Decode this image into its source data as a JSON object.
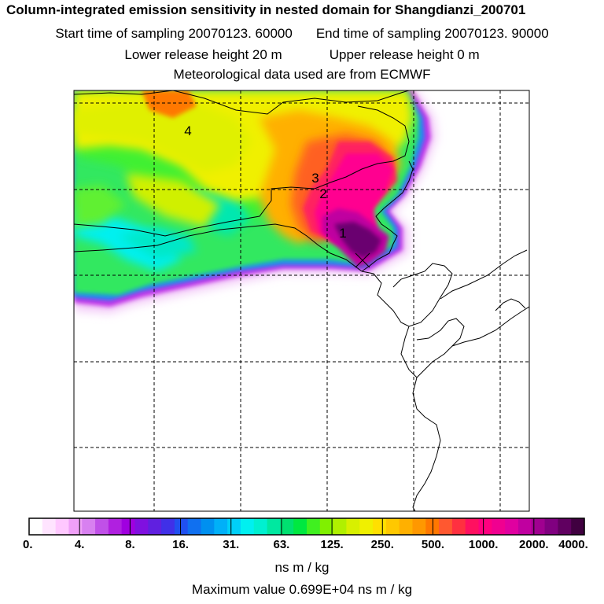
{
  "header": {
    "title": "Column-integrated emission sensitivity in nested domain for Shangdianzi_200701",
    "start_label": "Start time of sampling 20070123. 60000",
    "end_label": "End time of sampling 20070123. 90000",
    "lower_label": "Lower release height   20 m",
    "upper_label": "Upper release height    0 m",
    "met_label": "Meteorological data used are from ECMWF"
  },
  "map": {
    "markers": [
      "1",
      "2",
      "3",
      "4"
    ]
  },
  "colorbar": {
    "ticks": [
      "0.",
      "4.",
      "8.",
      "16.",
      "31.",
      "63.",
      "125.",
      "250.",
      "500.",
      "1000.",
      "2000.",
      "4000."
    ],
    "colors": [
      "#ffffff",
      "#ffe4ff",
      "#ffc8ff",
      "#f0a0f8",
      "#d880f0",
      "#c050e8",
      "#b020e0",
      "#a000e0",
      "#8010e0",
      "#6020e0",
      "#4030e8",
      "#2050f0",
      "#1070f0",
      "#0090f0",
      "#00b0f8",
      "#00d0f8",
      "#00f0f0",
      "#00f0d0",
      "#00e8a0",
      "#00e070",
      "#00e840",
      "#40f020",
      "#80f000",
      "#b0f000",
      "#d8f000",
      "#f0f000",
      "#ffe000",
      "#ffc800",
      "#ffb000",
      "#ff9800",
      "#ff7800",
      "#ff5830",
      "#ff3040",
      "#ff1060",
      "#ff0080",
      "#f00090",
      "#e000a0",
      "#c000a0",
      "#a00090",
      "#800080",
      "#600060",
      "#400040"
    ],
    "units": "ns m / kg"
  },
  "max_value_label": "Maximum value  0.699E+04 ns m / kg"
}
